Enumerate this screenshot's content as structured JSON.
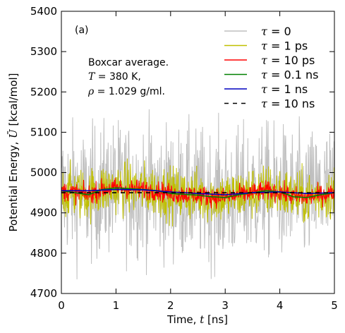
{
  "chart_data": {
    "type": "line",
    "panel_label": "(a)",
    "xlabel_prefix": "Time, ",
    "xlabel_var": "t",
    "xlabel_unit": " [ns]",
    "ylabel_prefix": "Potential Energy, ",
    "ylabel_var": "Ū",
    "ylabel_unit": " [kcal/mol]",
    "xlim": [
      0,
      5
    ],
    "ylim": [
      4700,
      5400
    ],
    "xticks": [
      0,
      1,
      2,
      3,
      4,
      5
    ],
    "yticks": [
      4700,
      4800,
      4900,
      5000,
      5100,
      5200,
      5300,
      5400
    ],
    "grid": false,
    "legend_position": "top-right",
    "annotation": {
      "line1": "Boxcar average.",
      "line2_var": "T",
      "line2_rest": " = 380 K,",
      "line3_var": "ρ",
      "line3_rest": " = 1.029 g/ml."
    },
    "series": [
      {
        "name_var": "τ",
        "name_value": " = 0",
        "name_unit": "",
        "color": "#bfbfbf",
        "style": "solid",
        "noise_amplitude": 150,
        "mean": 4955
      },
      {
        "name_var": "τ",
        "name_value": " = 1",
        "name_unit": " ps",
        "color": "#bfbf00",
        "style": "solid",
        "noise_amplitude": 60,
        "mean": 4955
      },
      {
        "name_var": "τ",
        "name_value": " = 10",
        "name_unit": " ps",
        "color": "#ff0000",
        "style": "solid",
        "noise_amplitude": 22,
        "mean": 4955
      },
      {
        "name_var": "τ",
        "name_value": " = 0.1",
        "name_unit": " ns",
        "color": "#008000",
        "style": "solid",
        "noise_amplitude": 0,
        "mean": 4955
      },
      {
        "name_var": "τ",
        "name_value": " = 1",
        "name_unit": " ns",
        "color": "#0000bf",
        "style": "solid",
        "noise_amplitude": 0,
        "mean": 4955
      },
      {
        "name_var": "τ",
        "name_value": " = 10",
        "name_unit": " ns",
        "color": "#000000",
        "style": "dashed",
        "noise_amplitude": 0,
        "mean": 4955
      }
    ],
    "smooth_curve_ns": {
      "x": [
        0,
        0.25,
        0.5,
        0.75,
        1.0,
        1.25,
        1.5,
        1.75,
        2.0,
        2.25,
        2.5,
        2.75,
        3.0,
        3.25,
        3.5,
        3.75,
        4.0,
        4.25,
        4.5,
        4.75,
        5.0
      ],
      "y": [
        4955,
        4950,
        4945,
        4958,
        4962,
        4960,
        4958,
        4955,
        4948,
        4946,
        4944,
        4940,
        4938,
        4945,
        4950,
        4955,
        4952,
        4940,
        4938,
        4945,
        4950
      ]
    },
    "line_1ns": {
      "x": [
        0,
        0.5,
        1.0,
        1.5,
        2.0,
        2.5,
        3.0,
        3.5,
        4.0,
        4.5,
        5.0
      ],
      "y": [
        4955,
        4955,
        4958,
        4957,
        4952,
        4948,
        4945,
        4950,
        4952,
        4948,
        4950
      ]
    },
    "line_10ns": {
      "y": 4950
    }
  }
}
